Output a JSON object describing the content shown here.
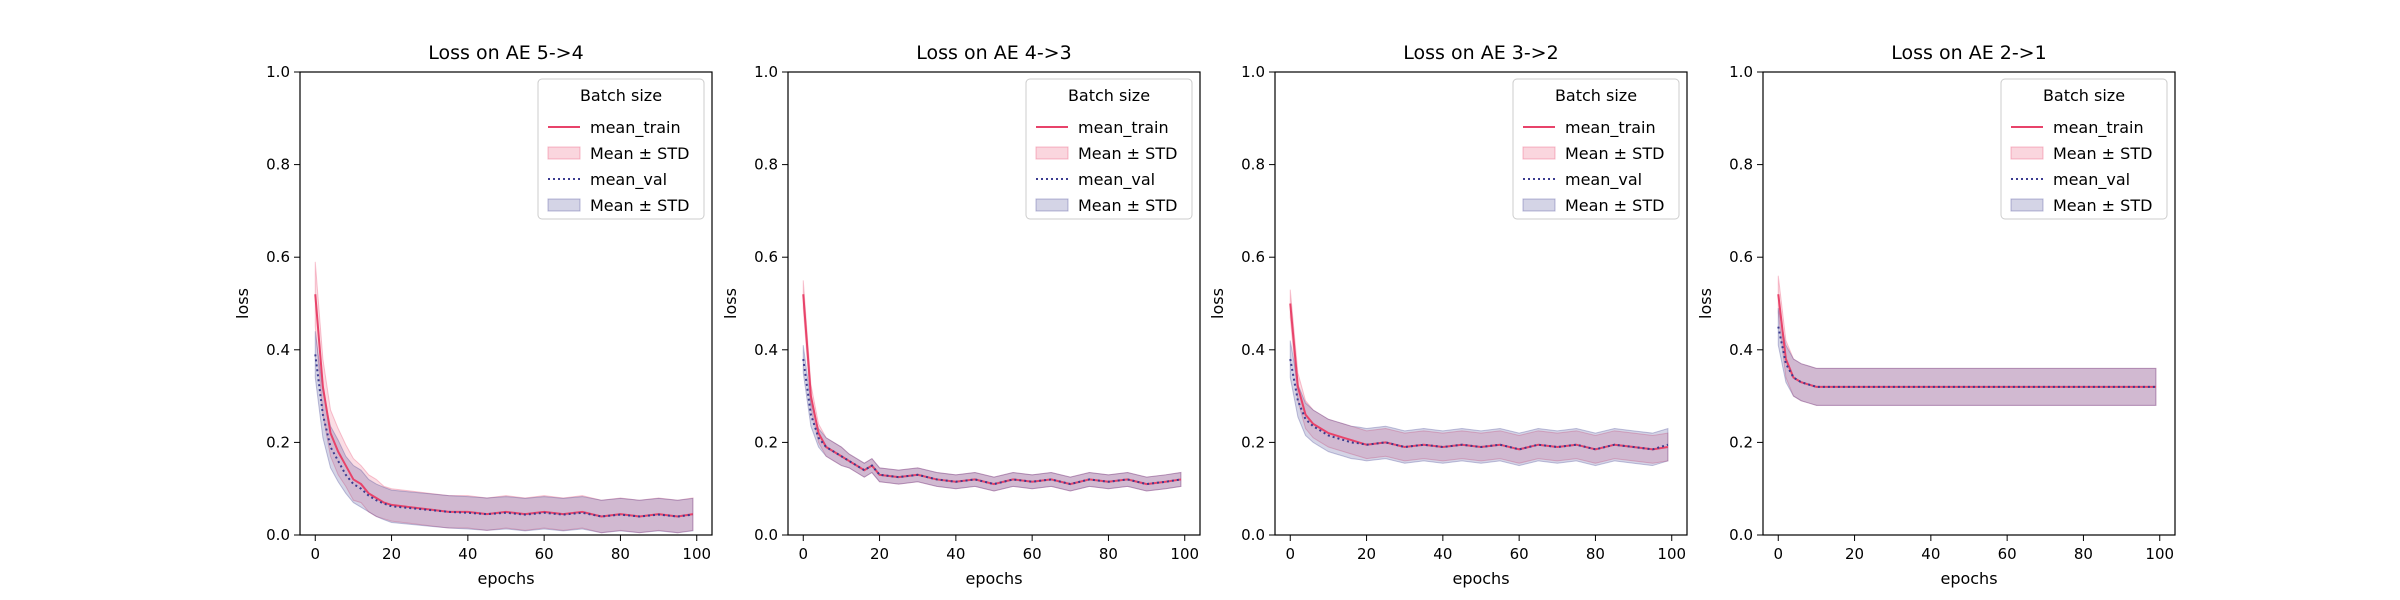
{
  "chart_data": [
    {
      "type": "line",
      "title": "Loss on AE 5->4",
      "xlabel": "epochs",
      "ylabel": "loss",
      "xlim": [
        -4,
        104
      ],
      "ylim": [
        0,
        1
      ],
      "xticks": [
        0,
        20,
        40,
        60,
        80,
        100
      ],
      "yticks": [
        0.0,
        0.2,
        0.4,
        0.6,
        0.8,
        1.0
      ],
      "legend": {
        "title": "Batch size",
        "placement": "top-right",
        "entries": [
          "mean_train",
          "Mean ± STD",
          "mean_val",
          "Mean ± STD"
        ]
      },
      "series": [
        {
          "name": "mean_train",
          "std_label": "Mean ± STD",
          "color": "#e8436a",
          "x": [
            0,
            2,
            4,
            6,
            8,
            10,
            12,
            14,
            16,
            18,
            20,
            25,
            30,
            35,
            40,
            45,
            50,
            55,
            60,
            65,
            70,
            75,
            80,
            85,
            90,
            95,
            99
          ],
          "mean": [
            0.52,
            0.32,
            0.22,
            0.18,
            0.15,
            0.12,
            0.11,
            0.09,
            0.08,
            0.07,
            0.065,
            0.06,
            0.055,
            0.05,
            0.05,
            0.045,
            0.05,
            0.045,
            0.05,
            0.045,
            0.05,
            0.04,
            0.045,
            0.04,
            0.045,
            0.04,
            0.045
          ],
          "std": [
            0.07,
            0.06,
            0.05,
            0.05,
            0.045,
            0.045,
            0.04,
            0.04,
            0.04,
            0.035,
            0.035,
            0.035,
            0.035,
            0.035,
            0.035,
            0.035,
            0.035,
            0.035,
            0.035,
            0.035,
            0.035,
            0.035,
            0.035,
            0.035,
            0.035,
            0.035,
            0.035
          ]
        },
        {
          "name": "mean_val",
          "std_label": "Mean ± STD",
          "color": "#3b3b8f",
          "x": [
            0,
            2,
            4,
            6,
            8,
            10,
            12,
            14,
            16,
            18,
            20,
            25,
            30,
            35,
            40,
            45,
            50,
            55,
            60,
            65,
            70,
            75,
            80,
            85,
            90,
            95,
            99
          ],
          "mean": [
            0.39,
            0.26,
            0.19,
            0.16,
            0.13,
            0.11,
            0.1,
            0.085,
            0.075,
            0.068,
            0.062,
            0.058,
            0.054,
            0.05,
            0.048,
            0.045,
            0.048,
            0.044,
            0.048,
            0.044,
            0.048,
            0.04,
            0.044,
            0.04,
            0.044,
            0.04,
            0.044
          ],
          "std": [
            0.05,
            0.05,
            0.045,
            0.045,
            0.04,
            0.04,
            0.04,
            0.035,
            0.035,
            0.035,
            0.035,
            0.035,
            0.035,
            0.035,
            0.035,
            0.035,
            0.035,
            0.035,
            0.035,
            0.035,
            0.035,
            0.035,
            0.035,
            0.035,
            0.035,
            0.035,
            0.035
          ]
        }
      ]
    },
    {
      "type": "line",
      "title": "Loss on AE 4->3",
      "xlabel": "epochs",
      "ylabel": "loss",
      "xlim": [
        -4,
        104
      ],
      "ylim": [
        0,
        1
      ],
      "xticks": [
        0,
        20,
        40,
        60,
        80,
        100
      ],
      "yticks": [
        0.0,
        0.2,
        0.4,
        0.6,
        0.8,
        1.0
      ],
      "legend": {
        "title": "Batch size",
        "placement": "top-right",
        "entries": [
          "mean_train",
          "Mean ± STD",
          "mean_val",
          "Mean ± STD"
        ]
      },
      "series": [
        {
          "name": "mean_train",
          "std_label": "Mean ± STD",
          "color": "#e8436a",
          "x": [
            0,
            2,
            4,
            6,
            8,
            10,
            12,
            14,
            16,
            18,
            20,
            25,
            30,
            35,
            40,
            45,
            50,
            55,
            60,
            65,
            70,
            75,
            80,
            85,
            90,
            95,
            99
          ],
          "mean": [
            0.52,
            0.3,
            0.22,
            0.19,
            0.18,
            0.17,
            0.16,
            0.15,
            0.14,
            0.15,
            0.13,
            0.125,
            0.13,
            0.12,
            0.115,
            0.12,
            0.11,
            0.12,
            0.115,
            0.12,
            0.11,
            0.12,
            0.115,
            0.12,
            0.11,
            0.115,
            0.12
          ],
          "std": [
            0.03,
            0.025,
            0.02,
            0.02,
            0.02,
            0.02,
            0.015,
            0.015,
            0.015,
            0.015,
            0.015,
            0.015,
            0.015,
            0.015,
            0.015,
            0.015,
            0.015,
            0.015,
            0.015,
            0.015,
            0.015,
            0.015,
            0.015,
            0.015,
            0.015,
            0.015,
            0.015
          ]
        },
        {
          "name": "mean_val",
          "std_label": "Mean ± STD",
          "color": "#3b3b8f",
          "x": [
            0,
            2,
            4,
            6,
            8,
            10,
            12,
            14,
            16,
            18,
            20,
            25,
            30,
            35,
            40,
            45,
            50,
            55,
            60,
            65,
            70,
            75,
            80,
            85,
            90,
            95,
            99
          ],
          "mean": [
            0.38,
            0.26,
            0.21,
            0.19,
            0.18,
            0.17,
            0.16,
            0.15,
            0.14,
            0.15,
            0.13,
            0.125,
            0.13,
            0.12,
            0.115,
            0.12,
            0.11,
            0.12,
            0.115,
            0.12,
            0.11,
            0.12,
            0.115,
            0.12,
            0.11,
            0.115,
            0.12
          ],
          "std": [
            0.03,
            0.025,
            0.02,
            0.02,
            0.02,
            0.02,
            0.015,
            0.015,
            0.015,
            0.015,
            0.015,
            0.015,
            0.015,
            0.015,
            0.015,
            0.015,
            0.015,
            0.015,
            0.015,
            0.015,
            0.015,
            0.015,
            0.015,
            0.015,
            0.015,
            0.015,
            0.015
          ]
        }
      ]
    },
    {
      "type": "line",
      "title": "Loss on AE 3->2",
      "xlabel": "epochs",
      "ylabel": "loss",
      "xlim": [
        -4,
        104
      ],
      "ylim": [
        0,
        1
      ],
      "xticks": [
        0,
        20,
        40,
        60,
        80,
        100
      ],
      "yticks": [
        0.0,
        0.2,
        0.4,
        0.6,
        0.8,
        1.0
      ],
      "legend": {
        "title": "Batch size",
        "placement": "top-right",
        "entries": [
          "mean_train",
          "Mean ± STD",
          "mean_val",
          "Mean ± STD"
        ]
      },
      "series": [
        {
          "name": "mean_train",
          "std_label": "Mean ± STD",
          "color": "#e8436a",
          "x": [
            0,
            2,
            4,
            6,
            8,
            10,
            12,
            14,
            16,
            18,
            20,
            25,
            30,
            35,
            40,
            45,
            50,
            55,
            60,
            65,
            70,
            75,
            80,
            85,
            90,
            95,
            99
          ],
          "mean": [
            0.5,
            0.32,
            0.26,
            0.24,
            0.23,
            0.22,
            0.215,
            0.21,
            0.205,
            0.2,
            0.195,
            0.2,
            0.19,
            0.195,
            0.19,
            0.195,
            0.19,
            0.195,
            0.185,
            0.195,
            0.19,
            0.195,
            0.185,
            0.195,
            0.19,
            0.185,
            0.19
          ],
          "std": [
            0.03,
            0.03,
            0.03,
            0.03,
            0.03,
            0.03,
            0.03,
            0.03,
            0.03,
            0.03,
            0.03,
            0.03,
            0.03,
            0.03,
            0.03,
            0.03,
            0.03,
            0.03,
            0.03,
            0.03,
            0.03,
            0.03,
            0.03,
            0.03,
            0.03,
            0.03,
            0.03
          ]
        },
        {
          "name": "mean_val",
          "std_label": "Mean ± STD",
          "color": "#3b3b8f",
          "x": [
            0,
            2,
            4,
            6,
            8,
            10,
            12,
            14,
            16,
            18,
            20,
            25,
            30,
            35,
            40,
            45,
            50,
            55,
            60,
            65,
            70,
            75,
            80,
            85,
            90,
            95,
            99
          ],
          "mean": [
            0.38,
            0.29,
            0.25,
            0.235,
            0.225,
            0.215,
            0.21,
            0.205,
            0.2,
            0.198,
            0.195,
            0.2,
            0.19,
            0.195,
            0.19,
            0.195,
            0.19,
            0.195,
            0.185,
            0.195,
            0.19,
            0.195,
            0.185,
            0.195,
            0.19,
            0.185,
            0.195
          ],
          "std": [
            0.04,
            0.035,
            0.035,
            0.035,
            0.035,
            0.035,
            0.035,
            0.035,
            0.035,
            0.035,
            0.035,
            0.035,
            0.035,
            0.035,
            0.035,
            0.035,
            0.035,
            0.035,
            0.035,
            0.035,
            0.035,
            0.035,
            0.035,
            0.035,
            0.035,
            0.035,
            0.035
          ]
        }
      ]
    },
    {
      "type": "line",
      "title": "Loss on AE 2->1",
      "xlabel": "epochs",
      "ylabel": "loss",
      "xlim": [
        -4,
        104
      ],
      "ylim": [
        0,
        1
      ],
      "xticks": [
        0,
        20,
        40,
        60,
        80,
        100
      ],
      "yticks": [
        0.0,
        0.2,
        0.4,
        0.6,
        0.8,
        1.0
      ],
      "legend": {
        "title": "Batch size",
        "placement": "top-right",
        "entries": [
          "mean_train",
          "Mean ± STD",
          "mean_val",
          "Mean ± STD"
        ]
      },
      "series": [
        {
          "name": "mean_train",
          "std_label": "Mean ± STD",
          "color": "#e8436a",
          "x": [
            0,
            2,
            4,
            6,
            8,
            10,
            12,
            14,
            16,
            18,
            20,
            25,
            30,
            35,
            40,
            45,
            50,
            55,
            60,
            65,
            70,
            75,
            80,
            85,
            90,
            95,
            99
          ],
          "mean": [
            0.52,
            0.38,
            0.34,
            0.33,
            0.325,
            0.32,
            0.32,
            0.32,
            0.32,
            0.32,
            0.32,
            0.32,
            0.32,
            0.32,
            0.32,
            0.32,
            0.32,
            0.32,
            0.32,
            0.32,
            0.32,
            0.32,
            0.32,
            0.32,
            0.32,
            0.32,
            0.32
          ],
          "std": [
            0.04,
            0.04,
            0.04,
            0.04,
            0.04,
            0.04,
            0.04,
            0.04,
            0.04,
            0.04,
            0.04,
            0.04,
            0.04,
            0.04,
            0.04,
            0.04,
            0.04,
            0.04,
            0.04,
            0.04,
            0.04,
            0.04,
            0.04,
            0.04,
            0.04,
            0.04,
            0.04
          ]
        },
        {
          "name": "mean_val",
          "std_label": "Mean ± STD",
          "color": "#3b3b8f",
          "x": [
            0,
            2,
            4,
            6,
            8,
            10,
            12,
            14,
            16,
            18,
            20,
            25,
            30,
            35,
            40,
            45,
            50,
            55,
            60,
            65,
            70,
            75,
            80,
            85,
            90,
            95,
            99
          ],
          "mean": [
            0.45,
            0.37,
            0.34,
            0.33,
            0.325,
            0.32,
            0.32,
            0.32,
            0.32,
            0.32,
            0.32,
            0.32,
            0.32,
            0.32,
            0.32,
            0.32,
            0.32,
            0.32,
            0.32,
            0.32,
            0.32,
            0.32,
            0.32,
            0.32,
            0.32,
            0.32,
            0.32
          ],
          "std": [
            0.04,
            0.04,
            0.04,
            0.04,
            0.04,
            0.04,
            0.04,
            0.04,
            0.04,
            0.04,
            0.04,
            0.04,
            0.04,
            0.04,
            0.04,
            0.04,
            0.04,
            0.04,
            0.04,
            0.04,
            0.04,
            0.04,
            0.04,
            0.04,
            0.04,
            0.04,
            0.04
          ]
        }
      ]
    }
  ]
}
